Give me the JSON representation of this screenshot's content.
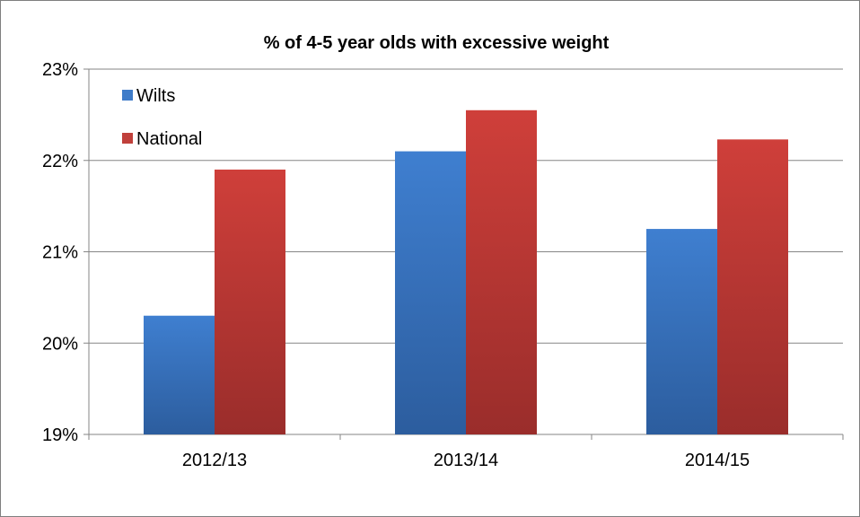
{
  "chart_data": {
    "type": "bar",
    "title": "% of 4-5 year olds with excessive weight",
    "xlabel": "",
    "ylabel": "",
    "categories": [
      "2012/13",
      "2013/14",
      "2014/15"
    ],
    "series": [
      {
        "name": "Wilts",
        "values": [
          20.3,
          22.1,
          21.25
        ],
        "color": "#3f7cc9"
      },
      {
        "name": "National",
        "values": [
          21.9,
          22.55,
          22.23
        ],
        "color": "#c0403b"
      }
    ],
    "ylim": [
      19,
      23
    ],
    "yticks": [
      19,
      20,
      21,
      22,
      23
    ],
    "ytick_labels": [
      "19%",
      "20%",
      "21%",
      "22%",
      "23%"
    ],
    "grid": true,
    "legend_position": "top-left"
  }
}
